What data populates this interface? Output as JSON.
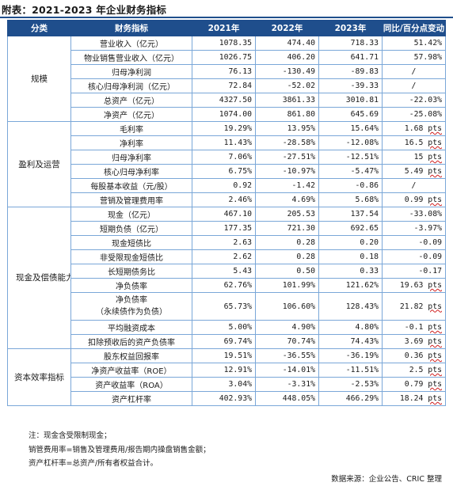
{
  "title": "附表：2021-2023 年企业财务指标",
  "headers": [
    "分类",
    "财务指标",
    "2021年",
    "2022年",
    "2023年",
    "同比/百分点变动"
  ],
  "groups": [
    {
      "category": "规模",
      "rows": [
        {
          "metric": "营业收入（亿元）",
          "y2021": "1078.35",
          "y2022": "474.40",
          "y2023": "718.33",
          "change": "51.42%"
        },
        {
          "metric": "物业销售营业收入（亿元）",
          "y2021": "1026.75",
          "y2022": "406.20",
          "y2023": "641.71",
          "change": "57.98%"
        },
        {
          "metric": "归母净利润",
          "y2021": "76.13",
          "y2022": "-130.49",
          "y2023": "-89.83",
          "change": "/"
        },
        {
          "metric": "核心归母净利润（亿元）",
          "y2021": "72.84",
          "y2022": "-52.02",
          "y2023": "-39.33",
          "change": "/"
        },
        {
          "metric": "总资产（亿元）",
          "y2021": "4327.50",
          "y2022": "3861.33",
          "y2023": "3010.81",
          "change": "-22.03%"
        },
        {
          "metric": "净资产（亿元）",
          "y2021": "1074.00",
          "y2022": "861.80",
          "y2023": "645.69",
          "change": "-25.08%"
        }
      ]
    },
    {
      "category": "盈利及运营",
      "rows": [
        {
          "metric": "毛利率",
          "y2021": "19.29%",
          "y2022": "13.95%",
          "y2023": "15.64%",
          "change": "1.68 pts"
        },
        {
          "metric": "净利率",
          "y2021": "11.43%",
          "y2022": "-28.58%",
          "y2023": "-12.08%",
          "change": "16.5 pts"
        },
        {
          "metric": "归母净利率",
          "y2021": "7.06%",
          "y2022": "-27.51%",
          "y2023": "-12.51%",
          "change": "15 pts"
        },
        {
          "metric": "核心归母净利率",
          "y2021": "6.75%",
          "y2022": "-10.97%",
          "y2023": "-5.47%",
          "change": "5.49 pts"
        },
        {
          "metric": "每股基本收益（元/股）",
          "y2021": "0.92",
          "y2022": "-1.42",
          "y2023": "-0.86",
          "change": "/"
        },
        {
          "metric": "营销及管理费用率",
          "y2021": "2.46%",
          "y2022": "4.69%",
          "y2023": "5.68%",
          "change": "0.99 pts"
        }
      ]
    },
    {
      "category": "现金及偿债能力指标",
      "rows": [
        {
          "metric": "现金（亿元）",
          "y2021": "467.10",
          "y2022": "205.53",
          "y2023": "137.54",
          "change": "-33.08%"
        },
        {
          "metric": "短期负债（亿元）",
          "y2021": "177.35",
          "y2022": "721.30",
          "y2023": "692.65",
          "change": "-3.97%"
        },
        {
          "metric": "现金短债比",
          "y2021": "2.63",
          "y2022": "0.28",
          "y2023": "0.20",
          "change": "-0.09"
        },
        {
          "metric": "非受限现金短债比",
          "y2021": "2.62",
          "y2022": "0.28",
          "y2023": "0.18",
          "change": "-0.09"
        },
        {
          "metric": "长短期债务比",
          "y2021": "5.43",
          "y2022": "0.50",
          "y2023": "0.33",
          "change": "-0.17"
        },
        {
          "metric": "净负债率",
          "y2021": "62.76%",
          "y2022": "101.99%",
          "y2023": "121.62%",
          "change": "19.63 pts"
        },
        {
          "metric": "净负债率",
          "metric2": "（永续债作为负债）",
          "y2021": "65.73%",
          "y2022": "106.60%",
          "y2023": "128.43%",
          "change": "21.82 pts"
        },
        {
          "metric": "平均融资成本",
          "y2021": "5.00%",
          "y2022": "4.90%",
          "y2023": "4.80%",
          "change": "-0.1 pts"
        },
        {
          "metric": "扣除预收后的资产负债率",
          "y2021": "69.74%",
          "y2022": "70.74%",
          "y2023": "74.43%",
          "change": "3.69 pts"
        }
      ]
    },
    {
      "category": "资本效率指标",
      "rows": [
        {
          "metric": "股东权益回报率",
          "y2021": "19.51%",
          "y2022": "-36.55%",
          "y2023": "-36.19%",
          "change": "0.36 pts"
        },
        {
          "metric": "净资产收益率（ROE）",
          "y2021": "12.91%",
          "y2022": "-14.01%",
          "y2023": "-11.51%",
          "change": "2.5 pts"
        },
        {
          "metric": "资产收益率（ROA）",
          "y2021": "3.04%",
          "y2022": "-3.31%",
          "y2023": "-2.53%",
          "change": "0.79 pts"
        },
        {
          "metric": "资产杠杆率",
          "y2021": "402.93%",
          "y2022": "448.05%",
          "y2023": "466.29%",
          "change": "18.24 pts"
        }
      ]
    }
  ],
  "notes": [
    "注：现金含受限制现金；",
    "销管费用率=销售及管理费用/报告期内操盘销售金额；",
    "资产杠杆率=总资产/所有者权益合计。"
  ],
  "source": "数据来源：企业公告、CRIC 整理"
}
